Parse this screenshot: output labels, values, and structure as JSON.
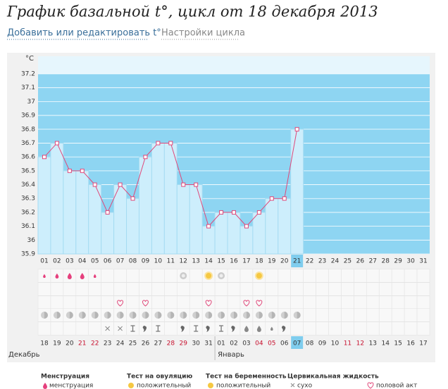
{
  "header": {
    "title": "График базальной t°, цикл от 18 декабря 2013",
    "links": [
      "Добавить или редактировать t°",
      "Настройки цикла"
    ]
  },
  "chart_data": {
    "type": "bar",
    "unit": "°C",
    "categories": [
      "01",
      "02",
      "03",
      "04",
      "05",
      "06",
      "07",
      "08",
      "09",
      "10",
      "11",
      "12",
      "13",
      "14",
      "15",
      "16",
      "17",
      "18",
      "19",
      "20",
      "21",
      "22",
      "23",
      "24",
      "25",
      "26",
      "27",
      "28",
      "29",
      "30",
      "31"
    ],
    "values": [
      36.6,
      36.7,
      36.5,
      36.5,
      36.4,
      36.2,
      36.4,
      36.3,
      36.6,
      36.7,
      36.7,
      36.4,
      36.4,
      36.1,
      36.2,
      36.2,
      36.1,
      36.2,
      36.3,
      36.3,
      36.8,
      null,
      null,
      null,
      null,
      null,
      null,
      null,
      null,
      null,
      null
    ],
    "ylim": [
      35.9,
      37.2
    ],
    "yticks": [
      35.9,
      36,
      36.1,
      36.2,
      36.3,
      36.4,
      36.5,
      36.6,
      36.7,
      36.8,
      36.9,
      37,
      37.1,
      37.2
    ],
    "color": "#cdeefc",
    "line_color": "#e0487a",
    "background": "#8ed5f2",
    "grid": true,
    "today": "21"
  },
  "calendar": {
    "dates": [
      "18",
      "19",
      "20",
      {
        "label": "21",
        "color": "#c8102e"
      },
      {
        "label": "22",
        "color": "#c8102e"
      },
      "23",
      "24",
      "25",
      "26",
      "27",
      {
        "label": "28",
        "color": "#c8102e"
      },
      {
        "label": "29",
        "color": "#c8102e"
      },
      "30",
      "31",
      "01",
      "02",
      "03",
      {
        "label": "04",
        "color": "#c8102e"
      },
      {
        "label": "05",
        "color": "#c8102e"
      },
      "06",
      "07",
      "08",
      "09",
      "10",
      {
        "label": "11",
        "color": "#c8102e"
      },
      {
        "label": "12",
        "color": "#c8102e"
      },
      "13",
      "14",
      "15",
      "16",
      "17"
    ],
    "today": "07",
    "months": [
      "Декабрь",
      "Январь"
    ],
    "rows": [
      [
        "drop-s",
        "drop",
        "drop-l",
        "drop-l",
        "drop-s",
        null,
        null,
        null,
        null,
        null,
        null,
        "test",
        null,
        "test-pos",
        "test",
        null,
        null,
        "test-pos"
      ],
      [],
      [
        null,
        null,
        null,
        null,
        null,
        null,
        "heart",
        null,
        "heart",
        null,
        null,
        null,
        null,
        "heart",
        null,
        null,
        "heart",
        "heart"
      ],
      [
        "circle",
        "circle",
        "circle",
        "circle",
        "circle",
        "circle",
        "circle",
        "circle",
        "circle",
        "circle",
        "circle",
        "circle",
        "circle",
        "circle",
        "circle",
        "circle",
        "circle",
        "circle",
        "circle",
        "circle",
        "circle"
      ],
      [
        null,
        null,
        null,
        null,
        null,
        "dry",
        "dry",
        "creamy",
        "sticky",
        "creamy",
        null,
        "sticky",
        "creamy",
        "sticky",
        "creamy",
        "sticky",
        "watery",
        "watery",
        "watery-s",
        "sticky"
      ]
    ]
  },
  "legend": [
    {
      "title": "Менструация",
      "item": "менструация"
    },
    {
      "title": "Тест на овуляцию",
      "item": "положительный"
    },
    {
      "title": "Тест на беременность",
      "item": "положительный"
    },
    {
      "title": "Цервикальная жидкость",
      "item": "сухо"
    },
    {
      "item": "половой акт"
    }
  ]
}
